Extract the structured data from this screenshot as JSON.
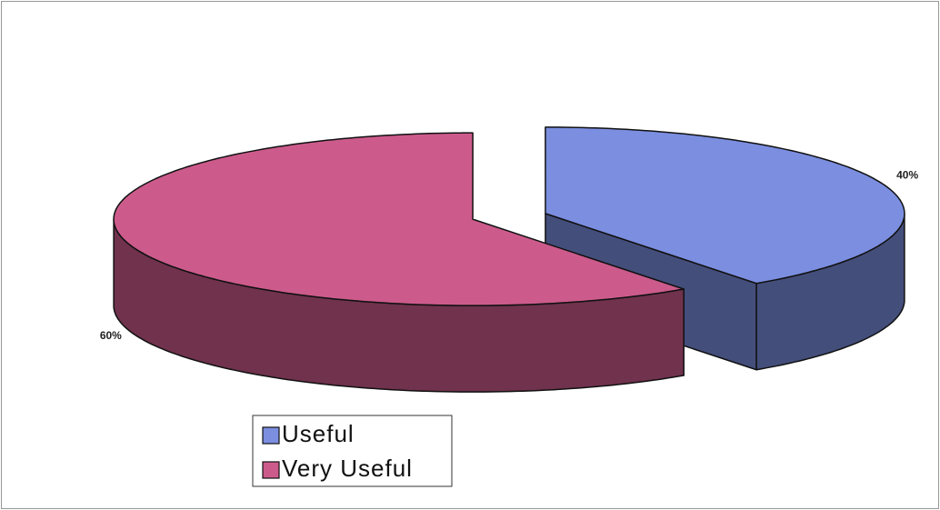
{
  "chart_data": {
    "type": "pie3d",
    "categories": [
      "Useful",
      "Very Useful"
    ],
    "values": [
      40,
      60
    ],
    "value_labels": [
      "40%",
      "60%"
    ],
    "colors": [
      "#7b8ee0",
      "#cc5b8c"
    ]
  }
}
